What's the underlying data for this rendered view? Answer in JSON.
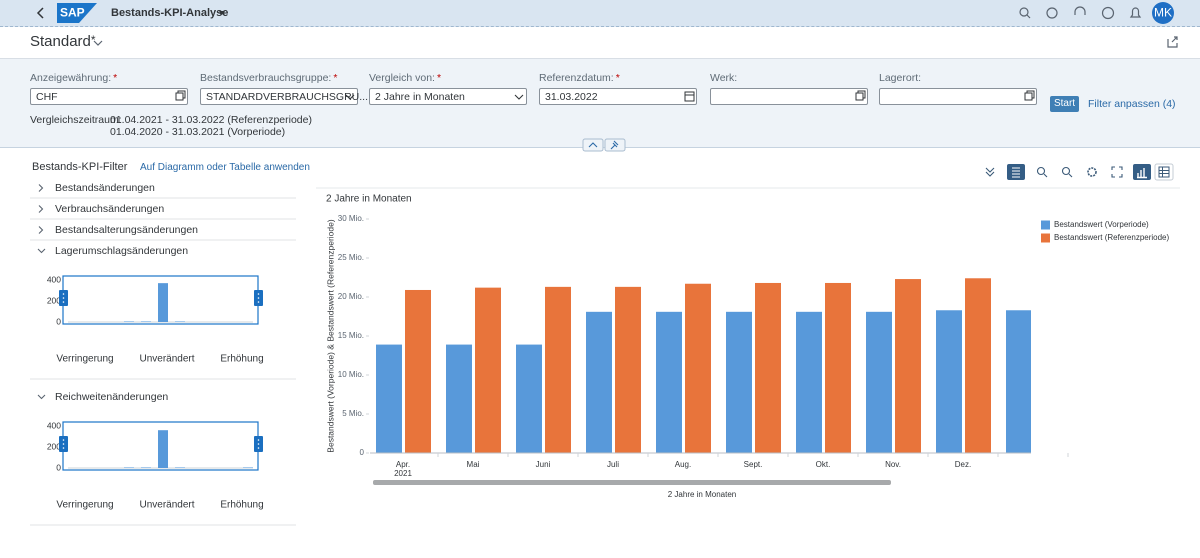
{
  "shell": {
    "logo": "SAP",
    "title": "Bestands-KPI-Analyse",
    "avatar": "MK"
  },
  "variant": {
    "name": "Standard",
    "modified": "*"
  },
  "filter_bar": {
    "fields": [
      {
        "label": "Anzeigewährung:",
        "marker": "*",
        "value": "CHF"
      },
      {
        "label": "Bestandsverbrauchsgruppe:",
        "marker": "*",
        "value": "STANDARDVERBRAUCHSGRU..."
      },
      {
        "label": "Vergleich von:",
        "marker": "*",
        "value": "2 Jahre in Monaten"
      },
      {
        "label": "Referenzdatum:",
        "marker": "*",
        "value": "31.03.2022"
      },
      {
        "label": "Werk:"
      },
      {
        "label": "Lagerort:"
      }
    ],
    "start_button": "Start",
    "adapt_link": "Filter anpassen (4)",
    "comparison_period": {
      "label": "Vergleichszeitraum:",
      "lines": [
        "01.04.2021 - 31.03.2022 (Referenzperiode)",
        "01.04.2020 - 31.03.2021 (Vorperiode)"
      ]
    }
  },
  "kpi_filter": {
    "title": "Bestands-KPI-Filter",
    "apply_link": "Auf Diagramm oder Tabelle anwenden",
    "items": [
      {
        "label": "Bestandsänderungen",
        "expanded": false
      },
      {
        "label": "Verbrauchsänderungen",
        "expanded": false
      },
      {
        "label": "Bestandsalterungsänderungen",
        "expanded": false
      },
      {
        "label": "Lagerumschlagsänderungen",
        "expanded": true,
        "chart": {
          "type": "bar",
          "values": [
            0,
            0,
            0,
            5,
            5,
            370,
            5,
            0,
            0,
            0,
            0
          ],
          "ylim": [
            0,
            400
          ],
          "yticks": [
            0,
            200,
            400
          ],
          "color": "#5899da",
          "labels": [
            "Verringerung",
            "Unverändert",
            "Erhöhung"
          ]
        }
      },
      {
        "label": "Reichweitenänderungen",
        "expanded": true,
        "chart": {
          "type": "bar",
          "values": [
            0,
            0,
            0,
            5,
            5,
            360,
            5,
            0,
            0,
            0,
            5
          ],
          "ylim": [
            0,
            400
          ],
          "yticks": [
            0,
            200,
            400
          ],
          "color": "#5899da",
          "labels": [
            "Verringerung",
            "Unverändert",
            "Erhöhung"
          ]
        }
      }
    ]
  },
  "chart_data": {
    "type": "bar",
    "title": "2 Jahre in Monaten",
    "x_label": "2 Jahre in Monaten",
    "y_label": "Bestandswert (Vorperiode) & Bestandswert (Referenzperiode)",
    "categories": [
      "Apr.",
      "Mai",
      "Juni",
      "Juli",
      "Aug.",
      "Sept.",
      "Okt.",
      "Nov.",
      "Dez.",
      null
    ],
    "first_category_year": "2021",
    "series": [
      {
        "name": "Bestandswert (Vorperiode)",
        "color": "#5899da",
        "values": [
          13900000,
          13900000,
          13900000,
          18100000,
          18100000,
          18100000,
          18100000,
          18100000,
          18300000,
          18300000
        ]
      },
      {
        "name": "Bestandswert (Referenzperiode)",
        "color": "#e8743b",
        "values": [
          20900000,
          21200000,
          21300000,
          21300000,
          21700000,
          21800000,
          21800000,
          22300000,
          22400000,
          null
        ]
      }
    ],
    "ylim": [
      0,
      30000000
    ],
    "yticks": [
      0,
      {
        "value": 5000000,
        "label": "5 Mio."
      },
      {
        "value": 10000000,
        "label": "10 Mio."
      },
      {
        "value": 15000000,
        "label": "15 Mio."
      },
      {
        "value": 20000000,
        "label": "20 Mio."
      },
      {
        "value": 25000000,
        "label": "25 Mio."
      },
      {
        "value": 30000000,
        "label": "30 Mio."
      }
    ],
    "grid": false,
    "legend": "top-right"
  }
}
